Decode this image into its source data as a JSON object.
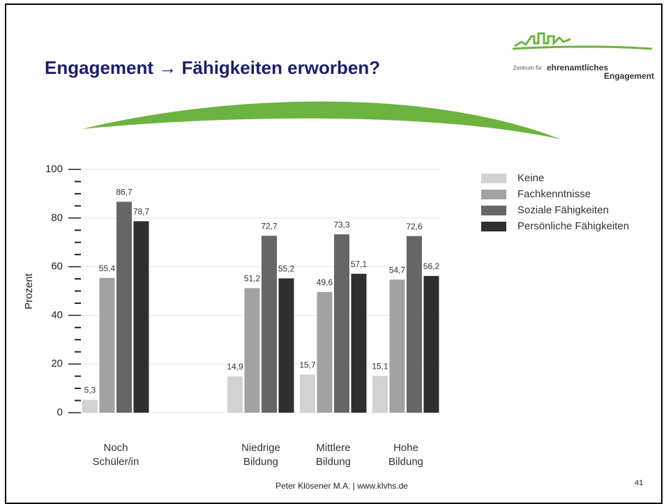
{
  "chart_data": {
    "type": "bar",
    "title": "Engagement → Fähigkeiten erworben?",
    "y_label": "Prozent",
    "categories": [
      "Noch Schüler/in",
      null,
      "Niedrige Bildung",
      "Mittlere Bildung",
      "Hohe Bildung"
    ],
    "series": [
      {
        "name": "Keine",
        "color": "#d2d2d2",
        "values": [
          5.3,
          null,
          14.9,
          15.7,
          15.1
        ],
        "value_labels": [
          "5,3",
          null,
          "14,9",
          "15,7",
          "15,1"
        ]
      },
      {
        "name": "Fachkenntnisse",
        "color": "#a2a2a2",
        "values": [
          55.4,
          null,
          51.2,
          49.6,
          54.7
        ],
        "value_labels": [
          "55,4",
          null,
          "51,2",
          "49,6",
          "54,7"
        ]
      },
      {
        "name": "Soziale Fähigkeiten",
        "color": "#666666",
        "values": [
          86.7,
          null,
          72.7,
          73.3,
          72.6
        ],
        "value_labels": [
          "86,7",
          null,
          "72,7",
          "73,3",
          "72,6"
        ]
      },
      {
        "name": "Persönliche Fähigkeiten",
        "color": "#2f2f2f",
        "values": [
          78.7,
          null,
          55.2,
          57.1,
          56.2
        ],
        "value_labels": [
          "78,7",
          null,
          "55,2",
          "57,1",
          "56,2"
        ]
      }
    ],
    "ylim": [
      0,
      100
    ],
    "yticks": [
      0,
      20,
      40,
      60,
      80,
      100
    ],
    "yminorticks": [
      5,
      10,
      15,
      25,
      30,
      35,
      45,
      50,
      55,
      65,
      70,
      75,
      85,
      90,
      95
    ],
    "grid": true,
    "legend": "right"
  },
  "slide": {
    "logo_prefix": "Zentrum für",
    "logo_main": "ehrenamtliches",
    "logo_second": "Engagement",
    "footer": "Peter Klösener M.A. | www.klvhs.de",
    "page_number": "41"
  }
}
